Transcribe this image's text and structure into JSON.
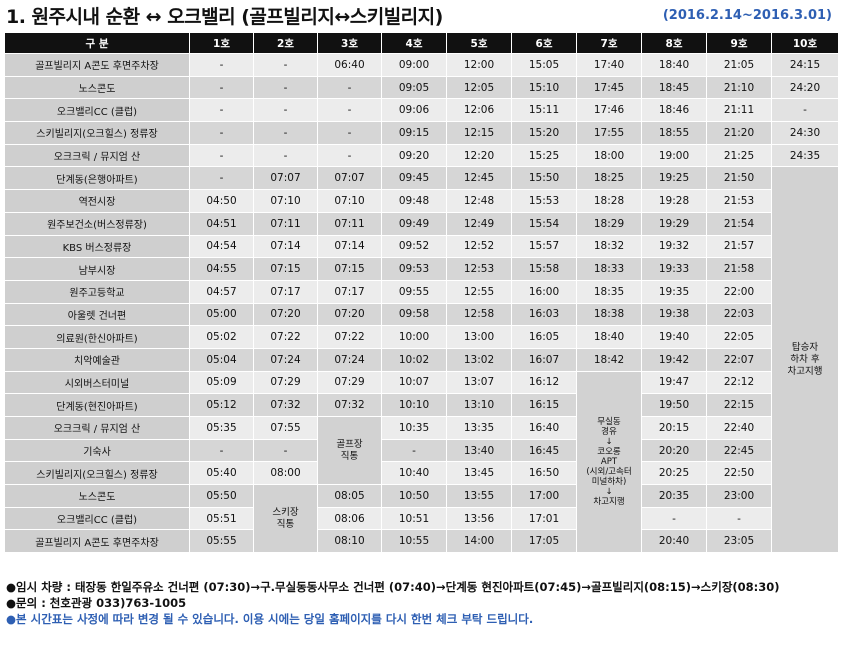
{
  "title": "1. 원주시내 순환 ↔ 오크밸리 (골프빌리지↔스키빌리지)",
  "period": "(2016.2.14~2016.3.01)",
  "table": {
    "headers": [
      "구 분",
      "1호",
      "2호",
      "3호",
      "4호",
      "5호",
      "6호",
      "7호",
      "8호",
      "9호",
      "10호"
    ],
    "rows": [
      {
        "stop": "골프빌리지 A콘도 후면주차장",
        "times": [
          "-",
          "-",
          "06:40",
          "09:00",
          "12:00",
          "15:05",
          "17:40",
          "18:40",
          "21:05",
          "24:15"
        ]
      },
      {
        "stop": "노스콘도",
        "times": [
          "-",
          "-",
          "-",
          "09:05",
          "12:05",
          "15:10",
          "17:45",
          "18:45",
          "21:10",
          "24:20"
        ]
      },
      {
        "stop": "오크밸리CC (클럽)",
        "times": [
          "-",
          "-",
          "-",
          "09:06",
          "12:06",
          "15:11",
          "17:46",
          "18:46",
          "21:11",
          "-"
        ]
      },
      {
        "stop": "스키빌리지(오크힐스) 정류장",
        "times": [
          "-",
          "-",
          "-",
          "09:15",
          "12:15",
          "15:20",
          "17:55",
          "18:55",
          "21:20",
          "24:30"
        ]
      },
      {
        "stop": "오크크릭 / 뮤지엄 산",
        "times": [
          "-",
          "-",
          "-",
          "09:20",
          "12:20",
          "15:25",
          "18:00",
          "19:00",
          "21:25",
          "24:35"
        ]
      },
      {
        "stop": "단계동(은행아파트)",
        "times": [
          "-",
          "07:07",
          "07:07",
          "09:45",
          "12:45",
          "15:50",
          "18:25",
          "19:25",
          "21:50"
        ]
      },
      {
        "stop": "역전시장",
        "times": [
          "04:50",
          "07:10",
          "07:10",
          "09:48",
          "12:48",
          "15:53",
          "18:28",
          "19:28",
          "21:53"
        ]
      },
      {
        "stop": "원주보건소(버스정류장)",
        "times": [
          "04:51",
          "07:11",
          "07:11",
          "09:49",
          "12:49",
          "15:54",
          "18:29",
          "19:29",
          "21:54"
        ]
      },
      {
        "stop": "KBS 버스정류장",
        "times": [
          "04:54",
          "07:14",
          "07:14",
          "09:52",
          "12:52",
          "15:57",
          "18:32",
          "19:32",
          "21:57"
        ]
      },
      {
        "stop": "남부시장",
        "times": [
          "04:55",
          "07:15",
          "07:15",
          "09:53",
          "12:53",
          "15:58",
          "18:33",
          "19:33",
          "21:58"
        ]
      },
      {
        "stop": "원주고등학교",
        "times": [
          "04:57",
          "07:17",
          "07:17",
          "09:55",
          "12:55",
          "16:00",
          "18:35",
          "19:35",
          "22:00"
        ]
      },
      {
        "stop": "아울렛 건너편",
        "times": [
          "05:00",
          "07:20",
          "07:20",
          "09:58",
          "12:58",
          "16:03",
          "18:38",
          "19:38",
          "22:03"
        ]
      },
      {
        "stop": "의료원(한신아파트)",
        "times": [
          "05:02",
          "07:22",
          "07:22",
          "10:00",
          "13:00",
          "16:05",
          "18:40",
          "19:40",
          "22:05"
        ]
      },
      {
        "stop": "치악예술관",
        "times": [
          "05:04",
          "07:24",
          "07:24",
          "10:02",
          "13:02",
          "16:07",
          "18:42",
          "19:42",
          "22:07"
        ]
      },
      {
        "stop": "시외버스터미널",
        "times": [
          "05:09",
          "07:29",
          "07:29",
          "10:07",
          "13:07",
          "16:12",
          "",
          "19:47",
          "22:12"
        ]
      },
      {
        "stop": "단계동(현진아파트)",
        "times": [
          "05:12",
          "07:32",
          "07:32",
          "10:10",
          "13:10",
          "16:15",
          "",
          "19:50",
          "22:15"
        ]
      },
      {
        "stop": "오크크릭 / 뮤지엄 산",
        "times": [
          "05:35",
          "07:55",
          "",
          "10:35",
          "13:35",
          "16:40",
          "",
          "20:15",
          "22:40"
        ]
      },
      {
        "stop": "기숙사",
        "times": [
          "-",
          "-",
          "",
          "-",
          "13:40",
          "16:45",
          "",
          "20:20",
          "22:45"
        ]
      },
      {
        "stop": "스키빌리지(오크힐스) 정류장",
        "times": [
          "05:40",
          "08:00",
          "",
          "10:40",
          "13:45",
          "16:50",
          "",
          "20:25",
          "22:50"
        ]
      },
      {
        "stop": "노스콘도",
        "times": [
          "05:50",
          "",
          "08:05",
          "10:50",
          "13:55",
          "17:00",
          "",
          "20:35",
          "23:00"
        ]
      },
      {
        "stop": "오크밸리CC (클럽)",
        "times": [
          "05:51",
          "",
          "08:06",
          "10:51",
          "13:56",
          "17:01",
          "",
          "-",
          "-"
        ]
      },
      {
        "stop": "골프빌리지 A콘도 후면주차장",
        "times": [
          "05:55",
          "",
          "08:10",
          "10:55",
          "14:00",
          "17:05",
          "",
          "20:40",
          "23:05"
        ]
      }
    ],
    "merged": {
      "col10": "탑승자\n하차 후\n차고지행",
      "col3": "골프장\n직통",
      "col2": "스키장\n직통",
      "col7": "무실동\n경유\n↓\n코오롱\nAPT\n(시외/고속터\n미널하차)\n↓\n차고지행"
    }
  },
  "notes": {
    "temp_vehicle": "●임시 차량 : 태장동 한일주유소 건너편 (07:30)→구.무실동동사무소 건너편 (07:40)→단계동 현진아파트(07:45)→골프빌리지(08:15)→스키장(08:30)",
    "inquiry": "●문의 : 천호관광 033)763-1005",
    "disclaimer": "●본 시간표는 사정에 따라 변경 될 수 있습니다. 이용 시에는 당일 홈페이지를 다시 한번 체크 부탁 드립니다."
  },
  "colors": {
    "header_bg": "#111111",
    "accent_blue": "#2e5fb3",
    "cell_light": "#ececec",
    "cell_dark": "#d6d6d6"
  }
}
